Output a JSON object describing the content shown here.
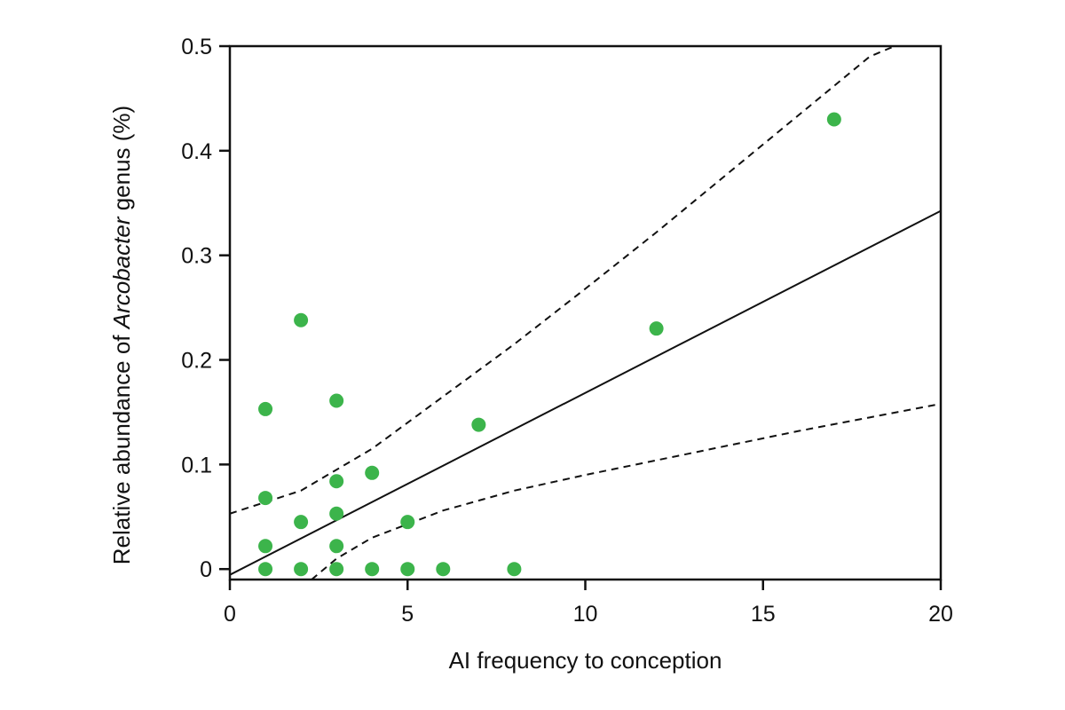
{
  "chart_data": {
    "type": "scatter",
    "title": "",
    "xlabel": "AI frequency to conception",
    "ylabel": {
      "prefix": "Relative abundance of ",
      "italic": "Arcobacter",
      "suffix": " genus  (%)"
    },
    "xlim": [
      0,
      20
    ],
    "ylim": [
      -0.01,
      0.5
    ],
    "xticks": [
      0,
      5,
      10,
      15,
      20
    ],
    "yticks": [
      0,
      0.1,
      0.2,
      0.3,
      0.4,
      0.5
    ],
    "xtick_labels": [
      "0",
      "5",
      "10",
      "15",
      "20"
    ],
    "ytick_labels": [
      "0",
      "0.1",
      "0.2",
      "0.3",
      "0.4",
      "0.5"
    ],
    "grid": false,
    "point_color": "#3cb44b",
    "points": [
      {
        "x": 1,
        "y": 0.153
      },
      {
        "x": 1,
        "y": 0.068
      },
      {
        "x": 1,
        "y": 0.022
      },
      {
        "x": 1,
        "y": 0.0
      },
      {
        "x": 2,
        "y": 0.238
      },
      {
        "x": 2,
        "y": 0.045
      },
      {
        "x": 2,
        "y": 0.0
      },
      {
        "x": 3,
        "y": 0.161
      },
      {
        "x": 3,
        "y": 0.084
      },
      {
        "x": 3,
        "y": 0.053
      },
      {
        "x": 3,
        "y": 0.022
      },
      {
        "x": 3,
        "y": 0.0
      },
      {
        "x": 4,
        "y": 0.092
      },
      {
        "x": 4,
        "y": 0.0
      },
      {
        "x": 5,
        "y": 0.045
      },
      {
        "x": 5,
        "y": 0.0
      },
      {
        "x": 6,
        "y": 0.0
      },
      {
        "x": 7,
        "y": 0.138
      },
      {
        "x": 8,
        "y": 0.0
      },
      {
        "x": 12,
        "y": 0.23
      },
      {
        "x": 17,
        "y": 0.43
      }
    ],
    "regression": {
      "intercept": -0.0055,
      "slope": 0.0174
    },
    "confidence_upper": [
      [
        0,
        0.053
      ],
      [
        2,
        0.075
      ],
      [
        4,
        0.115
      ],
      [
        6,
        0.165
      ],
      [
        8,
        0.215
      ],
      [
        10,
        0.268
      ],
      [
        12,
        0.322
      ],
      [
        14,
        0.378
      ],
      [
        16,
        0.434
      ],
      [
        18,
        0.49
      ],
      [
        18.7,
        0.5
      ]
    ],
    "confidence_lower": [
      [
        2.3,
        -0.01
      ],
      [
        3,
        0.01
      ],
      [
        4,
        0.03
      ],
      [
        6,
        0.056
      ],
      [
        8,
        0.075
      ],
      [
        10,
        0.09
      ],
      [
        12,
        0.104
      ],
      [
        14,
        0.118
      ],
      [
        16,
        0.132
      ],
      [
        18,
        0.145
      ],
      [
        20,
        0.158
      ]
    ]
  }
}
